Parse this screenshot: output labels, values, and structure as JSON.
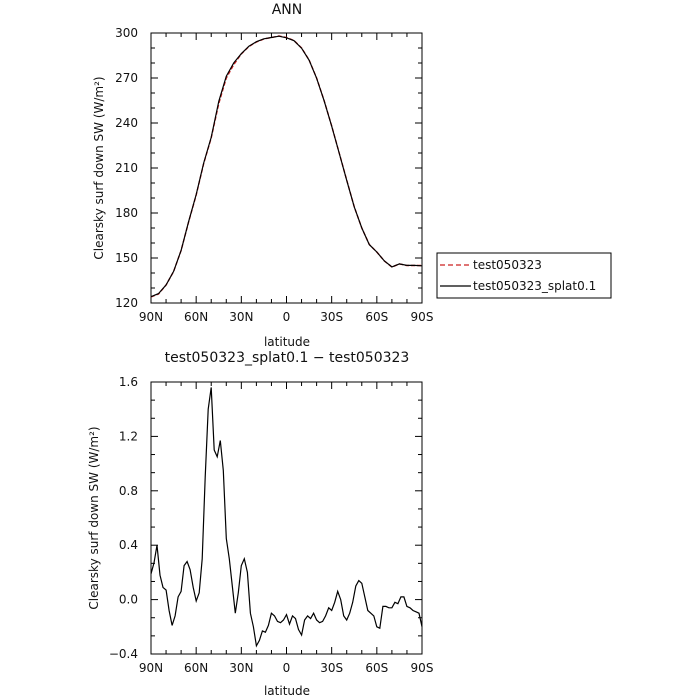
{
  "chart_data": [
    {
      "type": "line",
      "title": "ANN",
      "xlabel": "latitude",
      "ylabel": "Clearsky surf down SW (W/m²)",
      "xlim": [
        90,
        -90
      ],
      "ylim": [
        120,
        300
      ],
      "x_ticks": [
        90,
        60,
        30,
        0,
        -30,
        -60,
        -90
      ],
      "x_tick_labels": [
        "90N",
        "60N",
        "30N",
        "0",
        "30S",
        "60S",
        "90S"
      ],
      "y_ticks": [
        120,
        150,
        180,
        210,
        240,
        270,
        300
      ],
      "y_tick_labels": [
        "120",
        "150",
        "180",
        "210",
        "240",
        "270",
        "300"
      ],
      "legend_position": "right",
      "series": [
        {
          "name": "test050323",
          "color": "#cc2222",
          "line_style": "dashed",
          "x": [
            90,
            85,
            80,
            75,
            70,
            65,
            60,
            55,
            50,
            45,
            40,
            35,
            30,
            25,
            20,
            15,
            10,
            5,
            0,
            -5,
            -10,
            -15,
            -20,
            -25,
            -30,
            -35,
            -40,
            -45,
            -50,
            -55,
            -60,
            -65,
            -70,
            -75,
            -80,
            -85,
            -90
          ],
          "values": [
            124,
            126,
            132,
            141,
            155,
            174,
            192,
            213,
            230,
            253,
            270,
            279,
            286,
            291,
            294,
            296,
            297,
            298,
            297,
            295,
            290,
            282,
            270,
            255,
            238,
            220,
            202,
            184,
            170,
            159,
            154,
            148,
            144,
            146,
            145,
            145,
            145
          ]
        },
        {
          "name": "test050323_splat0.1",
          "color": "#000000",
          "line_style": "solid",
          "x": [
            90,
            85,
            80,
            75,
            70,
            65,
            60,
            55,
            50,
            45,
            40,
            35,
            30,
            25,
            20,
            15,
            10,
            5,
            0,
            -5,
            -10,
            -15,
            -20,
            -25,
            -30,
            -35,
            -40,
            -45,
            -50,
            -55,
            -60,
            -65,
            -70,
            -75,
            -80,
            -85,
            -90
          ],
          "values": [
            124.2,
            126.3,
            132.1,
            141.1,
            155.1,
            174.2,
            192.3,
            213.3,
            230.4,
            254.5,
            271.2,
            280.1,
            286.2,
            291.2,
            294.2,
            296.1,
            297.0,
            297.9,
            296.8,
            294.9,
            289.9,
            281.9,
            269.9,
            254.9,
            237.9,
            219.9,
            201.8,
            183.9,
            170.0,
            158.9,
            154.0,
            148.0,
            144.1,
            146.1,
            145.1,
            145.1,
            144.8
          ]
        }
      ]
    },
    {
      "type": "line",
      "title": "test050323_splat0.1 − test050323",
      "xlabel": "latitude",
      "ylabel": "Clearsky surf down SW (W/m²)",
      "xlim": [
        90,
        -90
      ],
      "ylim": [
        -0.4,
        1.6
      ],
      "x_ticks": [
        90,
        60,
        30,
        0,
        -30,
        -60,
        -90
      ],
      "x_tick_labels": [
        "90N",
        "60N",
        "30N",
        "0",
        "30S",
        "60S",
        "90S"
      ],
      "y_ticks": [
        -0.4,
        0.0,
        0.4,
        0.8,
        1.2,
        1.6
      ],
      "y_tick_labels": [
        "−0.4",
        "0.0",
        "0.4",
        "0.8",
        "1.2",
        "1.6"
      ],
      "series": [
        {
          "color": "#000000",
          "line_style": "solid",
          "x": [
            90,
            88,
            86,
            84,
            82,
            80,
            78,
            76,
            74,
            72,
            70,
            68,
            66,
            64,
            62,
            60,
            58,
            56,
            54,
            52,
            50,
            48,
            46,
            44,
            42,
            40,
            38,
            36,
            34,
            32,
            30,
            28,
            26,
            24,
            22,
            20,
            18,
            16,
            14,
            12,
            10,
            8,
            6,
            4,
            2,
            0,
            -2,
            -4,
            -6,
            -8,
            -10,
            -12,
            -14,
            -16,
            -18,
            -20,
            -22,
            -24,
            -26,
            -28,
            -30,
            -32,
            -34,
            -36,
            -38,
            -40,
            -42,
            -44,
            -46,
            -48,
            -50,
            -52,
            -54,
            -56,
            -58,
            -60,
            -62,
            -64,
            -66,
            -68,
            -70,
            -72,
            -74,
            -76,
            -78,
            -80,
            -82,
            -84,
            -86,
            -88,
            -90
          ],
          "values": [
            0.19,
            0.27,
            0.4,
            0.18,
            0.09,
            0.07,
            -0.08,
            -0.19,
            -0.12,
            0.02,
            0.06,
            0.25,
            0.28,
            0.22,
            0.09,
            -0.01,
            0.05,
            0.3,
            0.9,
            1.4,
            1.56,
            1.1,
            1.05,
            1.17,
            0.95,
            0.45,
            0.3,
            0.1,
            -0.1,
            0.05,
            0.25,
            0.3,
            0.2,
            -0.1,
            -0.2,
            -0.34,
            -0.3,
            -0.23,
            -0.24,
            -0.19,
            -0.1,
            -0.12,
            -0.16,
            -0.17,
            -0.15,
            -0.11,
            -0.18,
            -0.12,
            -0.14,
            -0.22,
            -0.26,
            -0.15,
            -0.12,
            -0.14,
            -0.1,
            -0.15,
            -0.17,
            -0.16,
            -0.12,
            -0.06,
            -0.08,
            -0.02,
            0.06,
            0.0,
            -0.12,
            -0.15,
            -0.1,
            -0.02,
            0.1,
            0.14,
            0.12,
            0.02,
            -0.08,
            -0.1,
            -0.12,
            -0.2,
            -0.21,
            -0.05,
            -0.05,
            -0.06,
            -0.06,
            -0.02,
            -0.03,
            0.02,
            0.02,
            -0.05,
            -0.06,
            -0.08,
            -0.09,
            -0.1,
            -0.2
          ]
        }
      ]
    }
  ]
}
